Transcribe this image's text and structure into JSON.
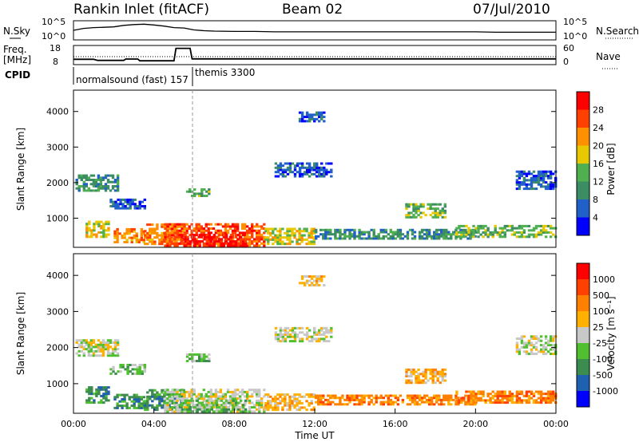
{
  "header": {
    "title": "Rankin Inlet (fitACF)",
    "beam": "Beam 02",
    "date": "07/Jul/2010"
  },
  "chart_data": [
    {
      "type": "line",
      "panel": "sky-search",
      "left_label": "N.Sky",
      "right_label": "N.Search",
      "left_ticks": [
        "10^5",
        "10^0"
      ],
      "right_ticks": [
        "10^5",
        "10^0"
      ],
      "scale": "log",
      "x": [
        0,
        0.5,
        1,
        1.5,
        2,
        2.5,
        3,
        3.5,
        4,
        4.5,
        5,
        5.5,
        6,
        6.5,
        7,
        8,
        9,
        10,
        11,
        12,
        13,
        14,
        15,
        16,
        17,
        18,
        19,
        20,
        21,
        22,
        23,
        24
      ],
      "values": [
        2.5,
        3.0,
        3.2,
        3.3,
        3.4,
        3.8,
        4.0,
        4.1,
        3.9,
        3.6,
        3.2,
        3.1,
        2.6,
        2.4,
        2.3,
        2.2,
        2.2,
        2.1,
        2.1,
        2.1,
        2.1,
        2.1,
        2.1,
        2.1,
        2.1,
        2.1,
        2.1,
        2.1,
        2.0,
        2.0,
        2.0,
        2.0
      ]
    },
    {
      "type": "line",
      "panel": "frequency-nave",
      "left_label": "Freq.",
      "left_unit": "[MHz]",
      "right_label": "Nave",
      "left_ticks": [
        "18",
        "8"
      ],
      "right_ticks": [
        "60",
        "0"
      ],
      "ylim": [
        8,
        18
      ],
      "x": [
        0,
        1,
        1.2,
        2.5,
        2.6,
        3.2,
        3.3,
        5.0,
        5.1,
        5.8,
        5.9,
        24
      ],
      "values": [
        10.8,
        10.8,
        10.2,
        10.2,
        10.9,
        10.9,
        10.0,
        10.0,
        16.5,
        16.5,
        11.0,
        11.0
      ]
    },
    {
      "type": "table",
      "panel": "cpid",
      "label": "CPID",
      "entries": [
        {
          "text": "normalsound (fast) 157",
          "start_hour": 0.0
        },
        {
          "text": "themis 3300",
          "start_hour": 5.9
        }
      ]
    },
    {
      "type": "heatmap",
      "panel": "power",
      "ylabel": "Slant Range [km]",
      "yticks": [
        1000,
        2000,
        3000,
        4000
      ],
      "ylim": [
        180,
        4600
      ],
      "xlim": [
        0,
        24
      ],
      "colorbar_label": "Power [dB]",
      "colorbar_ticks": [
        "4",
        "8",
        "12",
        "16",
        "20",
        "24",
        "28"
      ],
      "colors": [
        "#0000ff",
        "#2060c8",
        "#3c8c64",
        "#50b050",
        "#e8c800",
        "#ff9000",
        "#ff4000",
        "#ff0000"
      ],
      "regions": [
        {
          "x0": 0.1,
          "x1": 2.2,
          "r0": 1750,
          "r1": 2200,
          "level": 2
        },
        {
          "x0": 0.6,
          "x1": 1.8,
          "r0": 450,
          "r1": 900,
          "level": 4
        },
        {
          "x0": 2.0,
          "x1": 3.5,
          "r0": 300,
          "r1": 700,
          "level": 5
        },
        {
          "x0": 3.5,
          "x1": 5.5,
          "r0": 250,
          "r1": 800,
          "level": 5
        },
        {
          "x0": 4.5,
          "x1": 9.5,
          "r0": 200,
          "r1": 850,
          "level": 6
        },
        {
          "x0": 5.5,
          "x1": 8.5,
          "r0": 200,
          "r1": 550,
          "level": 7
        },
        {
          "x0": 9.5,
          "x1": 12.0,
          "r0": 250,
          "r1": 700,
          "level": 4
        },
        {
          "x0": 1.8,
          "x1": 3.6,
          "r0": 1250,
          "r1": 1500,
          "level": 1
        },
        {
          "x0": 5.6,
          "x1": 6.8,
          "r0": 1600,
          "r1": 1800,
          "level": 3
        },
        {
          "x0": 10.0,
          "x1": 12.8,
          "r0": 2150,
          "r1": 2550,
          "level": 1
        },
        {
          "x0": 11.2,
          "x1": 12.4,
          "r0": 3700,
          "r1": 3950,
          "level": 1
        },
        {
          "x0": 12.0,
          "x1": 20.0,
          "r0": 400,
          "r1": 700,
          "level": 2
        },
        {
          "x0": 16.5,
          "x1": 18.5,
          "r0": 1000,
          "r1": 1400,
          "level": 3
        },
        {
          "x0": 19.0,
          "x1": 24.0,
          "r0": 450,
          "r1": 800,
          "level": 3
        },
        {
          "x0": 22.0,
          "x1": 24.0,
          "r0": 1800,
          "r1": 2300,
          "level": 1
        }
      ]
    },
    {
      "type": "heatmap",
      "panel": "velocity",
      "ylabel": "Slant Range [km]",
      "yticks": [
        1000,
        2000,
        3000,
        4000
      ],
      "ylim": [
        180,
        4600
      ],
      "xlim": [
        0,
        24
      ],
      "xticks": [
        "00:00",
        "04:00",
        "08:00",
        "12:00",
        "16:00",
        "20:00",
        "00:00"
      ],
      "xlabel": "Time UT",
      "colorbar_label": "Velocity [m s⁻¹]",
      "colorbar_ticks": [
        "1000",
        "500",
        "100",
        "25",
        "-25",
        "-100",
        "-500",
        "-1000"
      ],
      "colors": [
        "#0000ff",
        "#2060b0",
        "#3c8c50",
        "#50c030",
        "#c8c8c8",
        "#ffb000",
        "#ff8000",
        "#ff4000",
        "#ff0000"
      ],
      "regions": [
        {
          "x0": 0.1,
          "x1": 2.2,
          "r0": 1750,
          "r1": 2200,
          "level": 4
        },
        {
          "x0": 0.6,
          "x1": 1.8,
          "r0": 450,
          "r1": 900,
          "level": 2
        },
        {
          "x0": 2.0,
          "x1": 3.5,
          "r0": 300,
          "r1": 700,
          "level": 2
        },
        {
          "x0": 3.5,
          "x1": 5.5,
          "r0": 250,
          "r1": 800,
          "level": 2
        },
        {
          "x0": 4.5,
          "x1": 9.5,
          "r0": 200,
          "r1": 850,
          "level": 4
        },
        {
          "x0": 5.5,
          "x1": 8.5,
          "r0": 200,
          "r1": 550,
          "level": 3
        },
        {
          "x0": 9.5,
          "x1": 12.0,
          "r0": 250,
          "r1": 700,
          "level": 5
        },
        {
          "x0": 1.8,
          "x1": 3.6,
          "r0": 1250,
          "r1": 1500,
          "level": 3
        },
        {
          "x0": 5.6,
          "x1": 6.8,
          "r0": 1600,
          "r1": 1800,
          "level": 3
        },
        {
          "x0": 10.0,
          "x1": 12.8,
          "r0": 2150,
          "r1": 2550,
          "level": 4
        },
        {
          "x0": 11.2,
          "x1": 12.4,
          "r0": 3700,
          "r1": 3950,
          "level": 5
        },
        {
          "x0": 12.0,
          "x1": 20.0,
          "r0": 400,
          "r1": 700,
          "level": 6
        },
        {
          "x0": 16.5,
          "x1": 18.5,
          "r0": 1000,
          "r1": 1400,
          "level": 5
        },
        {
          "x0": 19.0,
          "x1": 24.0,
          "r0": 450,
          "r1": 800,
          "level": 6
        },
        {
          "x0": 22.0,
          "x1": 24.0,
          "r0": 1800,
          "r1": 2300,
          "level": 4
        }
      ]
    }
  ]
}
